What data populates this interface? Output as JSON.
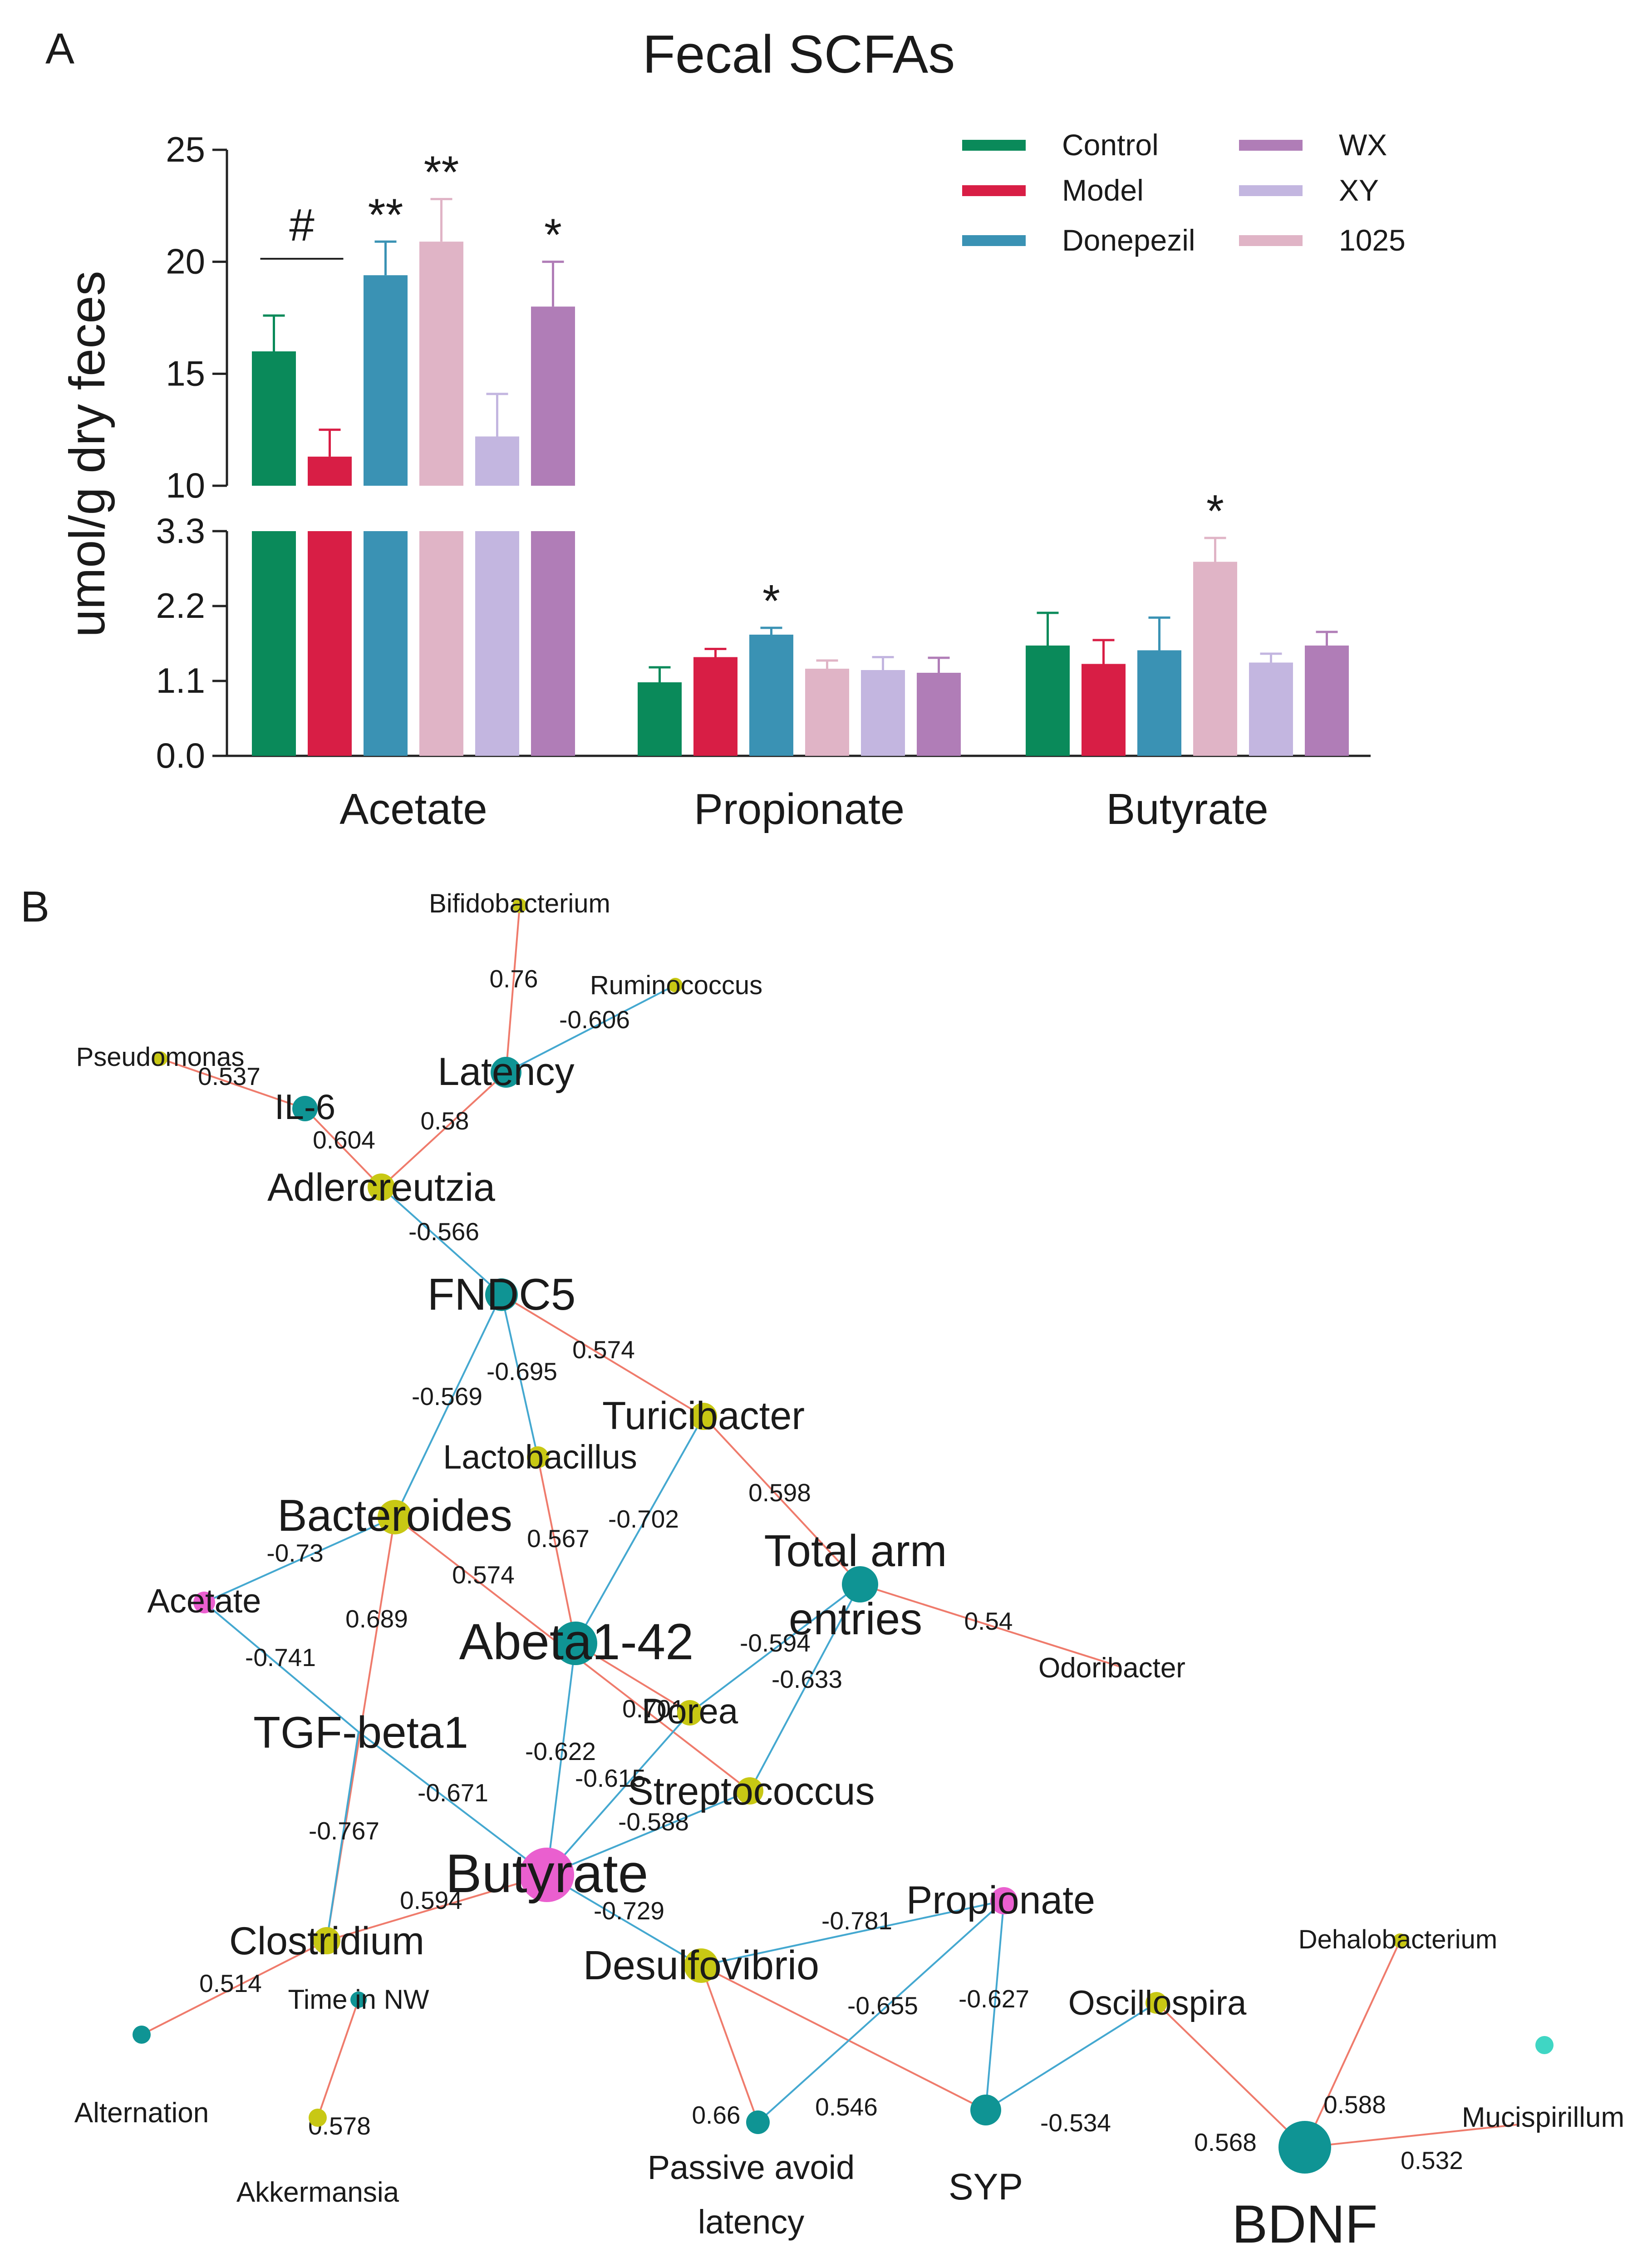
{
  "panel_a": {
    "letter": "A",
    "chart_data": {
      "type": "bar",
      "title": "Fecal SCFAs",
      "ylabel": "umol/g dry feces",
      "xlabel": "",
      "categories": [
        "Acetate",
        "Propionate",
        "Butyrate"
      ],
      "axis_break": {
        "lower_range": [
          0,
          3.3
        ],
        "upper_range": [
          10,
          25
        ]
      },
      "y_ticks_lower": [
        "0.0",
        "1.1",
        "2.2",
        "3.3"
      ],
      "y_ticks_upper": [
        "10",
        "15",
        "20",
        "25"
      ],
      "series": [
        {
          "name": "Control",
          "color": "#0a8a5a",
          "values": [
            16.0,
            1.08,
            1.62
          ],
          "errors": [
            1.6,
            0.22,
            0.48
          ]
        },
        {
          "name": "Model",
          "color": "#d81e45",
          "values": [
            11.3,
            1.45,
            1.35
          ],
          "errors": [
            1.2,
            0.12,
            0.35
          ]
        },
        {
          "name": "Donepezil",
          "color": "#3a92b4",
          "values": [
            19.4,
            1.78,
            1.55
          ],
          "errors": [
            1.5,
            0.1,
            0.48
          ]
        },
        {
          "name": "1025",
          "color": "#e0b4c6",
          "values": [
            20.9,
            1.28,
            2.85
          ],
          "errors": [
            1.9,
            0.12,
            0.35
          ]
        },
        {
          "name": "XY",
          "color": "#c3b6e0",
          "values": [
            12.2,
            1.26,
            1.37
          ],
          "errors": [
            1.9,
            0.19,
            0.13
          ]
        },
        {
          "name": "WX",
          "color": "#b07db7",
          "values": [
            18.0,
            1.22,
            1.62
          ],
          "errors": [
            2.0,
            0.22,
            0.2
          ]
        }
      ],
      "legend": {
        "placement": "top-right",
        "left_column": [
          "Control",
          "Model",
          "Donepezil"
        ],
        "right_column": [
          "WX",
          "XY",
          "1025"
        ]
      },
      "significance": [
        {
          "category": "Acetate",
          "series": "Model",
          "label": "#",
          "bracket_with": "Control"
        },
        {
          "category": "Acetate",
          "series": "Donepezil",
          "label": "**"
        },
        {
          "category": "Acetate",
          "series": "1025",
          "label": "**"
        },
        {
          "category": "Acetate",
          "series": "WX",
          "label": "*"
        },
        {
          "category": "Propionate",
          "series": "Donepezil",
          "label": "*"
        },
        {
          "category": "Butyrate",
          "series": "1025",
          "label": "*"
        }
      ]
    }
  },
  "panel_b": {
    "letter": "B",
    "network": {
      "type_colors": {
        "bacteria": "#c8c814",
        "host": "#0f9494",
        "scfa": "#ea5fcf",
        "isolated": "#3fd6c4"
      },
      "edge_colors": {
        "positive": "#ef7b6c",
        "negative": "#44a8d0"
      },
      "nodes": [
        {
          "id": "Bifidobacterium",
          "label": "Bifidobacterium",
          "type": "bacteria"
        },
        {
          "id": "Ruminococcus",
          "label": "Ruminococcus",
          "type": "bacteria"
        },
        {
          "id": "Pseudomonas",
          "label": "Pseudomonas",
          "type": "bacteria"
        },
        {
          "id": "IL6",
          "label": "IL-6",
          "type": "host"
        },
        {
          "id": "Latency",
          "label": "Latency",
          "type": "host"
        },
        {
          "id": "Adlercreutzia",
          "label": "Adlercreutzia",
          "type": "bacteria"
        },
        {
          "id": "FNDC5",
          "label": "FNDC5",
          "type": "host"
        },
        {
          "id": "Turicibacter",
          "label": "Turicibacter",
          "type": "bacteria"
        },
        {
          "id": "Lactobacillus",
          "label": "Lactobacillus",
          "type": "bacteria"
        },
        {
          "id": "Bacteroides",
          "label": "Bacteroides",
          "type": "bacteria"
        },
        {
          "id": "TotalArm",
          "label": "Total arm",
          "label2": "entries",
          "type": "host"
        },
        {
          "id": "Acetate",
          "label": "Acetate",
          "type": "scfa"
        },
        {
          "id": "Abeta",
          "label": "Abeta1-42",
          "type": "host"
        },
        {
          "id": "Odoribacter",
          "label": "Odoribacter",
          "type": "bacteria"
        },
        {
          "id": "Dorea",
          "label": "Dorea",
          "type": "bacteria"
        },
        {
          "id": "TGFb1",
          "label": "TGF-beta1",
          "type": "host"
        },
        {
          "id": "Streptococcus",
          "label": "Streptococcus",
          "type": "bacteria"
        },
        {
          "id": "Butyrate",
          "label": "Butyrate",
          "type": "scfa"
        },
        {
          "id": "Propionate",
          "label": "Propionate",
          "type": "scfa"
        },
        {
          "id": "Clostridium",
          "label": "Clostridium",
          "type": "bacteria"
        },
        {
          "id": "Desulfovibrio",
          "label": "Desulfovibrio",
          "type": "bacteria"
        },
        {
          "id": "Dehalobacterium",
          "label": "Dehalobacterium",
          "type": "bacteria"
        },
        {
          "id": "Oscillospira",
          "label": "Oscillospira",
          "type": "bacteria"
        },
        {
          "id": "TimeNW",
          "label": "Time in NW",
          "type": "host"
        },
        {
          "id": "Alternation",
          "label": "Alternation",
          "type": "host"
        },
        {
          "id": "Akkermansia",
          "label": "Akkermansia",
          "type": "bacteria"
        },
        {
          "id": "PassiveAvoid",
          "label": "Passive avoid",
          "label2": "latency",
          "type": "host"
        },
        {
          "id": "SYP",
          "label": "SYP",
          "type": "host"
        },
        {
          "id": "BDNF",
          "label": "BDNF",
          "type": "host"
        },
        {
          "id": "Mucispirillum",
          "label": "Mucispirillum",
          "type": "bacteria"
        },
        {
          "id": "Isolated",
          "label": "",
          "type": "isolated"
        }
      ],
      "edges": [
        {
          "s": "Bifidobacterium",
          "t": "Latency",
          "w": "0.76"
        },
        {
          "s": "Ruminococcus",
          "t": "Latency",
          "w": "-0.606"
        },
        {
          "s": "Pseudomonas",
          "t": "IL6",
          "w": "0.537"
        },
        {
          "s": "IL6",
          "t": "Adlercreutzia",
          "w": "0.604"
        },
        {
          "s": "Latency",
          "t": "Adlercreutzia",
          "w": "0.58"
        },
        {
          "s": "Adlercreutzia",
          "t": "FNDC5",
          "w": "-0.566"
        },
        {
          "s": "FNDC5",
          "t": "Turicibacter",
          "w": "0.574"
        },
        {
          "s": "FNDC5",
          "t": "Lactobacillus",
          "w": "-0.695"
        },
        {
          "s": "FNDC5",
          "t": "Bacteroides",
          "w": "-0.569"
        },
        {
          "s": "Turicibacter",
          "t": "TotalArm",
          "w": "0.598"
        },
        {
          "s": "Turicibacter",
          "t": "Abeta",
          "w": "-0.702"
        },
        {
          "s": "Lactobacillus",
          "t": "Abeta",
          "w": "0.567"
        },
        {
          "s": "Bacteroides",
          "t": "Acetate",
          "w": "-0.73"
        },
        {
          "s": "Bacteroides",
          "t": "Streptococcus",
          "w": "0.574"
        },
        {
          "s": "Bacteroides",
          "t": "Clostridium",
          "w": "0.689"
        },
        {
          "s": "TotalArm",
          "t": "Odoribacter",
          "w": "0.54"
        },
        {
          "s": "TotalArm",
          "t": "Dorea",
          "w": "-0.594"
        },
        {
          "s": "TotalArm",
          "t": "Streptococcus",
          "w": "-0.633"
        },
        {
          "s": "Acetate",
          "t": "TGFb1",
          "w": "-0.741"
        },
        {
          "s": "Abeta",
          "t": "Dorea",
          "w": "0.701"
        },
        {
          "s": "Abeta",
          "t": "Butyrate",
          "w": "-0.622"
        },
        {
          "s": "TGFb1",
          "t": "Butyrate",
          "w": "-0.671"
        },
        {
          "s": "TGFb1",
          "t": "Clostridium",
          "w": "-0.767"
        },
        {
          "s": "Dorea",
          "t": "Butyrate",
          "w": "-0.615"
        },
        {
          "s": "Streptococcus",
          "t": "Butyrate",
          "w": "-0.588"
        },
        {
          "s": "Butyrate",
          "t": "Clostridium",
          "w": "0.594"
        },
        {
          "s": "Butyrate",
          "t": "Desulfovibrio",
          "w": "-0.729"
        },
        {
          "s": "Clostridium",
          "t": "Alternation",
          "w": "0.514"
        },
        {
          "s": "TimeNW",
          "t": "Akkermansia",
          "w": "0.578"
        },
        {
          "s": "Desulfovibrio",
          "t": "Propionate",
          "w": "-0.781"
        },
        {
          "s": "Desulfovibrio",
          "t": "PassiveAvoid",
          "w": "0.66"
        },
        {
          "s": "Desulfovibrio",
          "t": "SYP",
          "w": "0.546"
        },
        {
          "s": "Propionate",
          "t": "PassiveAvoid",
          "w": "-0.655"
        },
        {
          "s": "Propionate",
          "t": "SYP",
          "w": "-0.627"
        },
        {
          "s": "SYP",
          "t": "Oscillospira",
          "w": "-0.534"
        },
        {
          "s": "Oscillospira",
          "t": "BDNF",
          "w": "0.568"
        },
        {
          "s": "Dehalobacterium",
          "t": "BDNF",
          "w": "0.588"
        },
        {
          "s": "BDNF",
          "t": "Mucispirillum",
          "w": "0.532"
        }
      ]
    }
  }
}
